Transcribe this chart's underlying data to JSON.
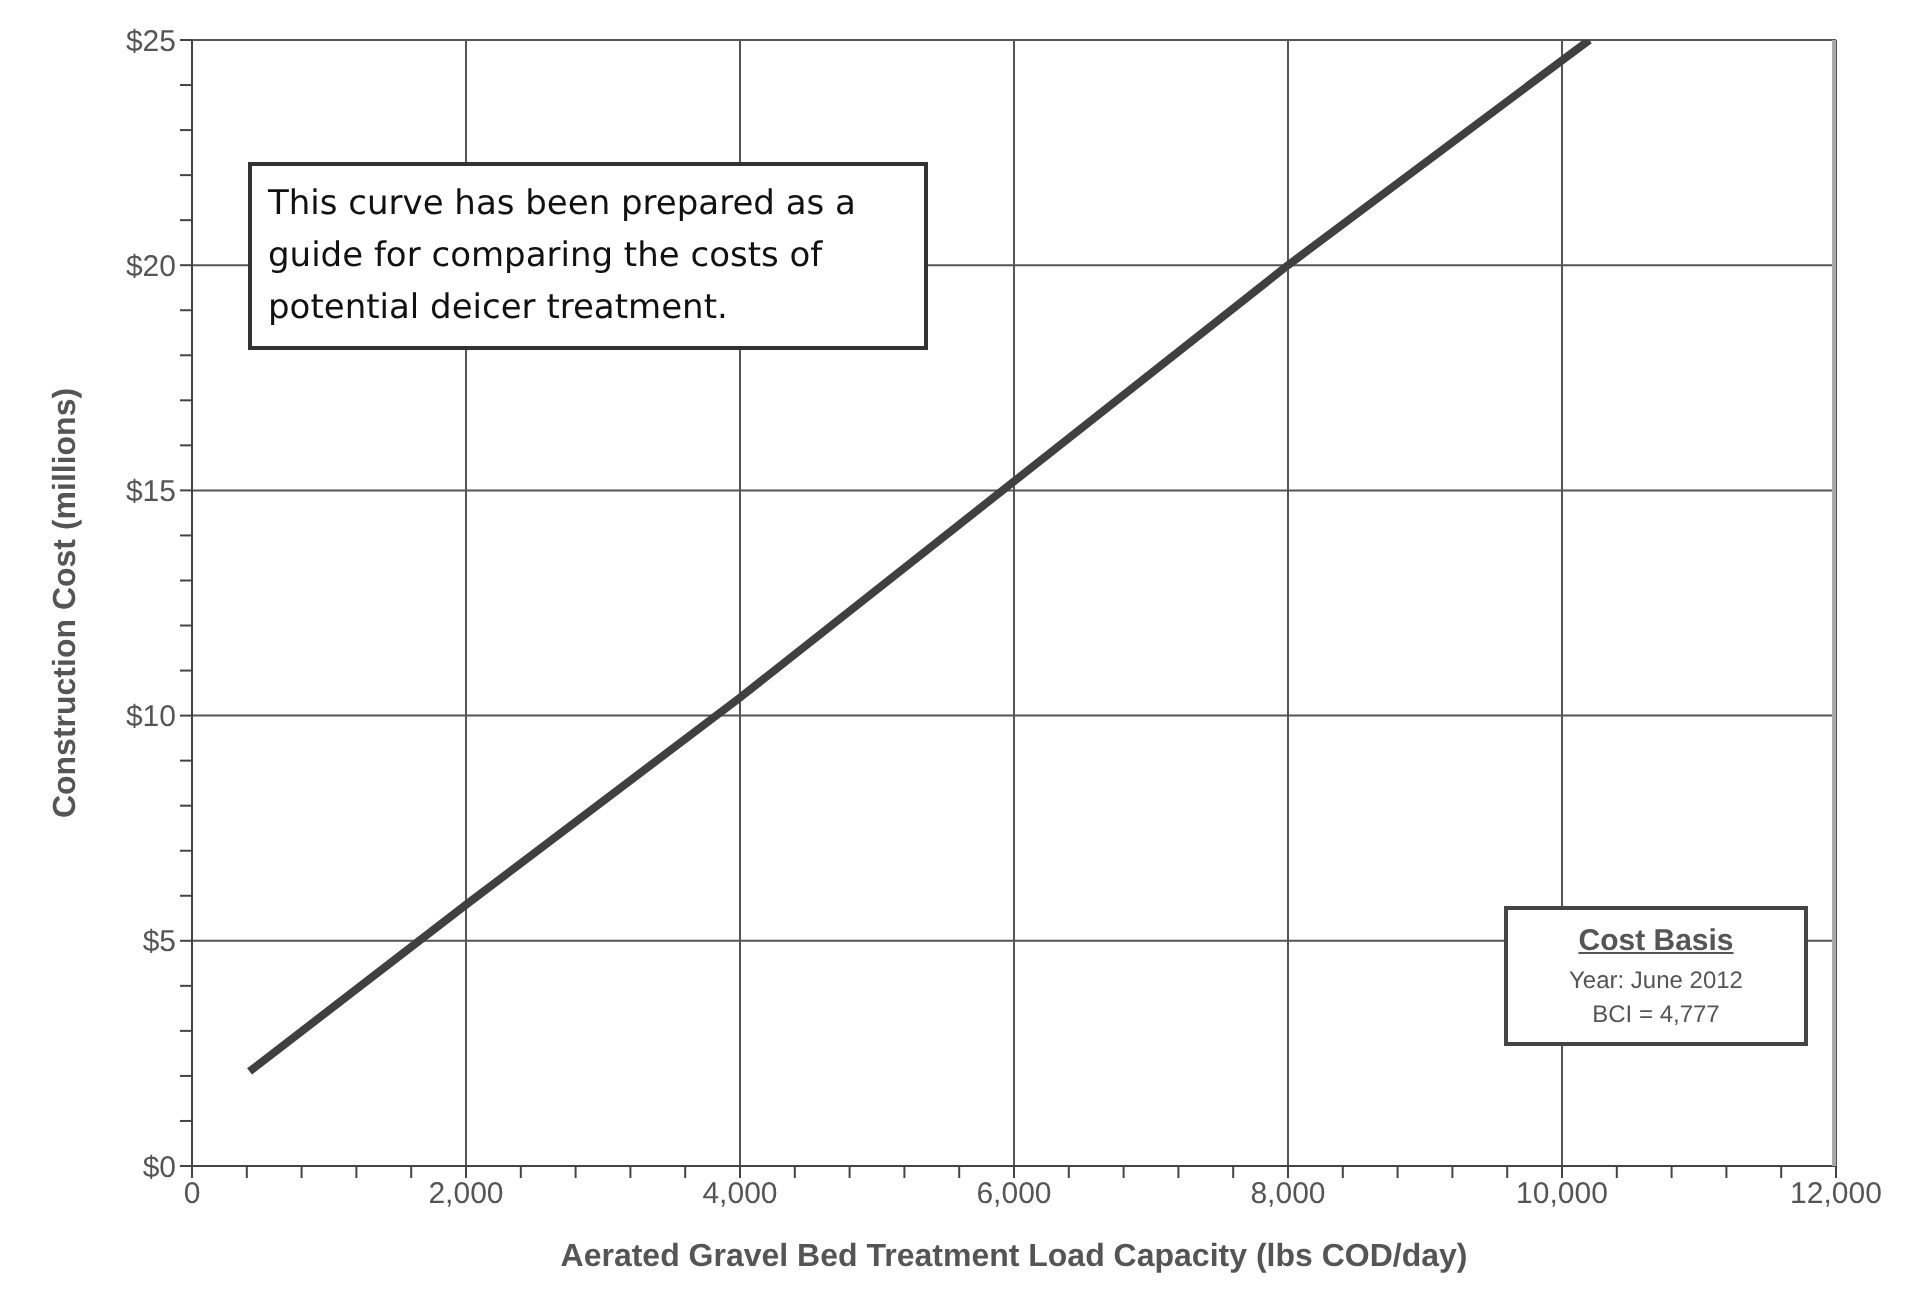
{
  "chart_data": {
    "type": "line",
    "xlabel": "Aerated Gravel Bed Treatment Load Capacity (lbs COD/day)",
    "ylabel": "Construction Cost (millions)",
    "x": [
      420,
      2000,
      4000,
      6000,
      8000,
      10200
    ],
    "series": [
      {
        "color": "#404040",
        "values": [
          2.1,
          5.8,
          10.4,
          15.2,
          20,
          25
        ]
      }
    ],
    "xlim": [
      0,
      12000
    ],
    "xticks": [
      0,
      {
        "value": 400,
        "label": null
      },
      {
        "value": 800,
        "label": null
      },
      {
        "value": 1200,
        "label": null
      },
      {
        "value": 1600,
        "label": null
      },
      {
        "value": 2000,
        "label": "2,000"
      },
      {
        "value": 2400,
        "label": null
      },
      {
        "value": 2800,
        "label": null
      },
      {
        "value": 3200,
        "label": null
      },
      {
        "value": 3600,
        "label": null
      },
      {
        "value": 4000,
        "label": "4,000"
      },
      {
        "value": 4400,
        "label": null
      },
      {
        "value": 4800,
        "label": null
      },
      {
        "value": 5200,
        "label": null
      },
      {
        "value": 5600,
        "label": null
      },
      {
        "value": 6000,
        "label": "6,000"
      },
      {
        "value": 6400,
        "label": null
      },
      {
        "value": 6800,
        "label": null
      },
      {
        "value": 7200,
        "label": null
      },
      {
        "value": 7600,
        "label": null
      },
      {
        "value": 8000,
        "label": "8,000"
      },
      {
        "value": 8400,
        "label": null
      },
      {
        "value": 8800,
        "label": null
      },
      {
        "value": 9200,
        "label": null
      },
      {
        "value": 9600,
        "label": null
      },
      {
        "value": 10000,
        "label": "10,000"
      },
      {
        "value": 10400,
        "label": null
      },
      {
        "value": 10800,
        "label": null
      },
      {
        "value": 11200,
        "label": null
      },
      {
        "value": 11600,
        "label": null
      },
      {
        "value": 12000,
        "label": "12,000"
      }
    ],
    "ylim": [
      0,
      25
    ],
    "yticks": [
      {
        "value": 0,
        "label": "$0"
      },
      {
        "value": 1,
        "label": null
      },
      {
        "value": 2,
        "label": null
      },
      {
        "value": 3,
        "label": null
      },
      {
        "value": 4,
        "label": null
      },
      {
        "value": 5,
        "label": "$5"
      },
      {
        "value": 6,
        "label": null
      },
      {
        "value": 7,
        "label": null
      },
      {
        "value": 8,
        "label": null
      },
      {
        "value": 9,
        "label": null
      },
      {
        "value": 10,
        "label": "$10"
      },
      {
        "value": 11,
        "label": null
      },
      {
        "value": 12,
        "label": null
      },
      {
        "value": 13,
        "label": null
      },
      {
        "value": 14,
        "label": null
      },
      {
        "value": 15,
        "label": "$15"
      },
      {
        "value": 16,
        "label": null
      },
      {
        "value": 17,
        "label": null
      },
      {
        "value": 18,
        "label": null
      },
      {
        "value": 19,
        "label": null
      },
      {
        "value": 20,
        "label": "$20"
      },
      {
        "value": 21,
        "label": null
      },
      {
        "value": 22,
        "label": null
      },
      {
        "value": 23,
        "label": null
      },
      {
        "value": 24,
        "label": null
      },
      {
        "value": 25,
        "label": "$25"
      }
    ],
    "grid": true,
    "marker": "none",
    "line_style": "solid",
    "annotations": [
      "This curve has been prepared as a guide for comparing the costs of potential deicer treatment.",
      "Cost Basis",
      "Year: June 2012",
      "BCI = 4,777"
    ]
  }
}
